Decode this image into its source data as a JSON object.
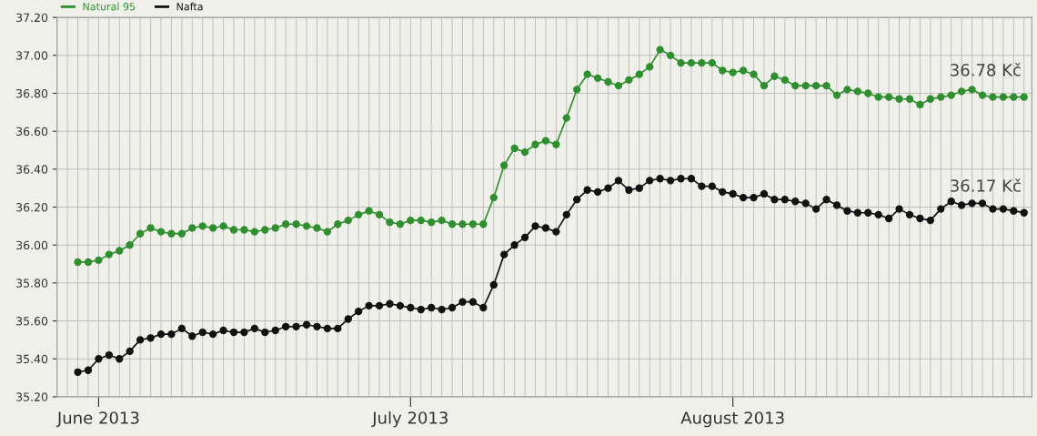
{
  "chart_data": {
    "type": "line",
    "x": [
      "2013-05-30",
      "2013-05-31",
      "2013-06-01",
      "2013-06-02",
      "2013-06-03",
      "2013-06-04",
      "2013-06-05",
      "2013-06-06",
      "2013-06-07",
      "2013-06-08",
      "2013-06-09",
      "2013-06-10",
      "2013-06-11",
      "2013-06-12",
      "2013-06-13",
      "2013-06-14",
      "2013-06-15",
      "2013-06-16",
      "2013-06-17",
      "2013-06-18",
      "2013-06-19",
      "2013-06-20",
      "2013-06-21",
      "2013-06-22",
      "2013-06-23",
      "2013-06-24",
      "2013-06-25",
      "2013-06-26",
      "2013-06-27",
      "2013-06-28",
      "2013-06-29",
      "2013-06-30",
      "2013-07-01",
      "2013-07-02",
      "2013-07-03",
      "2013-07-04",
      "2013-07-05",
      "2013-07-06",
      "2013-07-07",
      "2013-07-08",
      "2013-07-09",
      "2013-07-10",
      "2013-07-11",
      "2013-07-12",
      "2013-07-13",
      "2013-07-14",
      "2013-07-15",
      "2013-07-16",
      "2013-07-17",
      "2013-07-18",
      "2013-07-19",
      "2013-07-20",
      "2013-07-21",
      "2013-07-22",
      "2013-07-23",
      "2013-07-24",
      "2013-07-25",
      "2013-07-26",
      "2013-07-27",
      "2013-07-28",
      "2013-07-29",
      "2013-07-30",
      "2013-07-31",
      "2013-08-01",
      "2013-08-02",
      "2013-08-03",
      "2013-08-04",
      "2013-08-05",
      "2013-08-06",
      "2013-08-07",
      "2013-08-08",
      "2013-08-09",
      "2013-08-10",
      "2013-08-11",
      "2013-08-12",
      "2013-08-13",
      "2013-08-14",
      "2013-08-15",
      "2013-08-16",
      "2013-08-17",
      "2013-08-18",
      "2013-08-19",
      "2013-08-20",
      "2013-08-21",
      "2013-08-22",
      "2013-08-23",
      "2013-08-24",
      "2013-08-25",
      "2013-08-26",
      "2013-08-27",
      "2013-08-28",
      "2013-08-29"
    ],
    "series": [
      {
        "name": "Natural 95",
        "color": "#2f8f2f",
        "values": [
          35.91,
          35.91,
          35.92,
          35.95,
          35.97,
          36.0,
          36.06,
          36.09,
          36.07,
          36.06,
          36.06,
          36.09,
          36.1,
          36.09,
          36.1,
          36.08,
          36.08,
          36.07,
          36.08,
          36.09,
          36.11,
          36.11,
          36.1,
          36.09,
          36.07,
          36.11,
          36.13,
          36.16,
          36.18,
          36.16,
          36.12,
          36.11,
          36.13,
          36.13,
          36.12,
          36.13,
          36.11,
          36.11,
          36.11,
          36.11,
          36.25,
          36.42,
          36.51,
          36.49,
          36.53,
          36.55,
          36.53,
          36.67,
          36.82,
          36.9,
          36.88,
          36.86,
          36.84,
          36.87,
          36.9,
          36.94,
          37.03,
          37.0,
          36.96,
          36.96,
          36.96,
          36.96,
          36.92,
          36.91,
          36.92,
          36.9,
          36.84,
          36.89,
          36.87,
          36.84,
          36.84,
          36.84,
          36.84,
          36.79,
          36.82,
          36.81,
          36.8,
          36.78,
          36.78,
          36.77,
          36.77,
          36.74,
          36.77,
          36.78,
          36.79,
          36.81,
          36.82,
          36.79,
          36.78,
          36.78,
          36.78,
          36.78
        ]
      },
      {
        "name": "Nafta",
        "color": "#111111",
        "values": [
          35.33,
          35.34,
          35.4,
          35.42,
          35.4,
          35.44,
          35.5,
          35.51,
          35.53,
          35.53,
          35.56,
          35.52,
          35.54,
          35.53,
          35.55,
          35.54,
          35.54,
          35.56,
          35.54,
          35.55,
          35.57,
          35.57,
          35.58,
          35.57,
          35.56,
          35.56,
          35.61,
          35.65,
          35.68,
          35.68,
          35.69,
          35.68,
          35.67,
          35.66,
          35.67,
          35.66,
          35.67,
          35.7,
          35.7,
          35.67,
          35.79,
          35.95,
          36.0,
          36.04,
          36.1,
          36.09,
          36.07,
          36.16,
          36.24,
          36.29,
          36.28,
          36.3,
          36.34,
          36.29,
          36.3,
          36.34,
          36.35,
          36.34,
          36.35,
          36.35,
          36.31,
          36.31,
          36.28,
          36.27,
          36.25,
          36.25,
          36.27,
          36.24,
          36.24,
          36.23,
          36.22,
          36.19,
          36.24,
          36.21,
          36.18,
          36.17,
          36.17,
          36.16,
          36.14,
          36.19,
          36.16,
          36.14,
          36.13,
          36.19,
          36.23,
          36.21,
          36.22,
          36.22,
          36.19,
          36.19,
          36.18,
          36.17
        ]
      }
    ],
    "annotations": [
      {
        "text": "36.78 Kč",
        "x": "2013-08-29",
        "y": 36.78
      },
      {
        "text": "36.17 Kč",
        "x": "2013-08-29",
        "y": 36.17
      }
    ],
    "xlim": [
      "2013-05-28",
      "2013-08-29T18:00"
    ],
    "xticks": [
      {
        "value": "2013-06-01",
        "label": "June 2013"
      },
      {
        "value": "2013-07-01",
        "label": "July 2013"
      },
      {
        "value": "2013-08-01",
        "label": "August 2013"
      }
    ],
    "ylim": [
      35.2,
      37.2
    ],
    "yticks": [
      {
        "value": 35.2,
        "label": "35.20"
      },
      {
        "value": 35.4,
        "label": "35.40"
      },
      {
        "value": 35.6,
        "label": "35.60"
      },
      {
        "value": 35.8,
        "label": "35.80"
      },
      {
        "value": 36.0,
        "label": "36.00"
      },
      {
        "value": 36.2,
        "label": "36.20"
      },
      {
        "value": 36.4,
        "label": "36.40"
      },
      {
        "value": 36.6,
        "label": "36.60"
      },
      {
        "value": 36.8,
        "label": "36.80"
      },
      {
        "value": 37.0,
        "label": "37.00"
      },
      {
        "value": 37.2,
        "label": "37.20"
      }
    ],
    "grid": true,
    "legend": "top left",
    "marker": "circle",
    "line_style": "solid"
  }
}
